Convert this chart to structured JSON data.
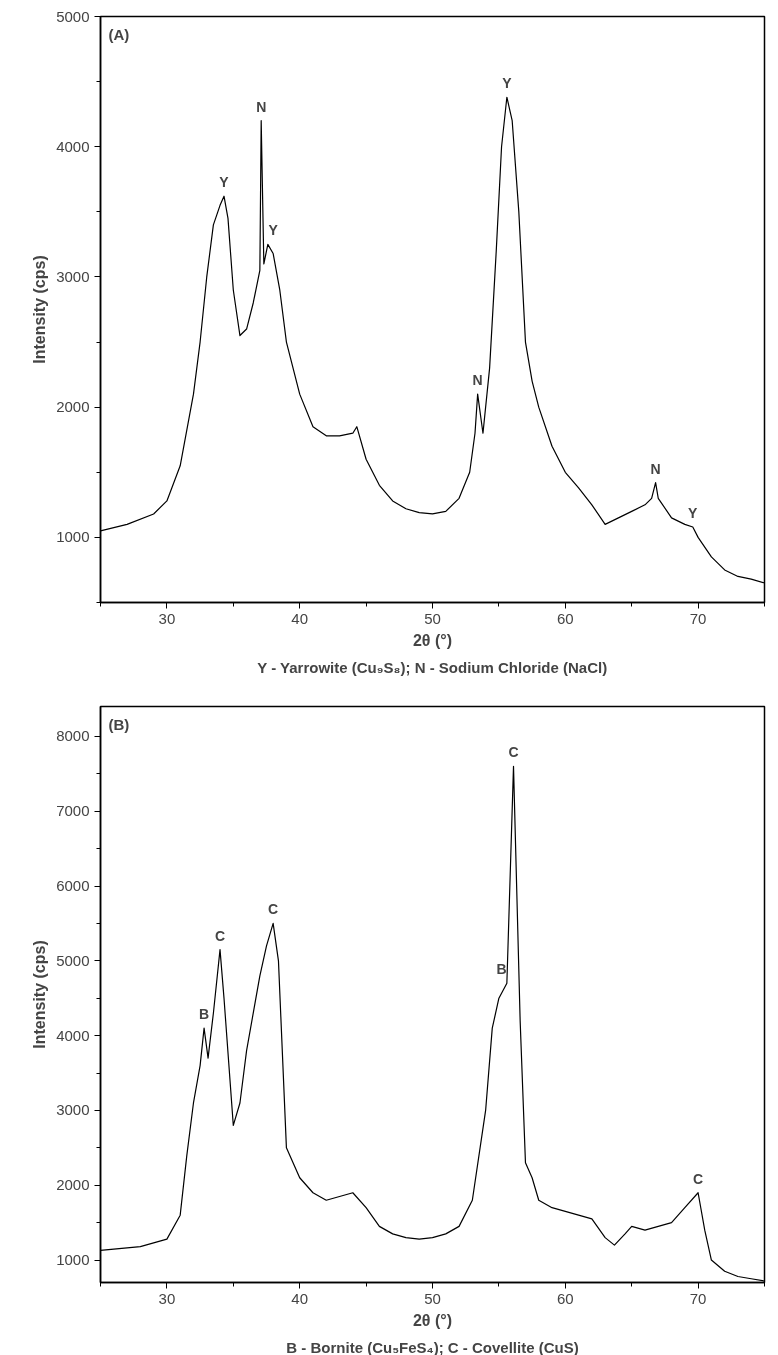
{
  "chart_data": [
    {
      "type": "line",
      "title": "(A)",
      "xlabel": "2θ (°)",
      "ylabel": "Intensity (cps)",
      "xlim": [
        25,
        75
      ],
      "ylim": [
        500,
        5000
      ],
      "xticks": [
        30,
        40,
        50,
        60,
        70
      ],
      "yticks": [
        1000,
        2000,
        3000,
        4000,
        5000
      ],
      "grid": false,
      "x": [
        25,
        27,
        29,
        30,
        31,
        32,
        32.5,
        33,
        33.5,
        34,
        34.3,
        34.6,
        35,
        35.5,
        36,
        36.5,
        37,
        37.1,
        37.3,
        37.6,
        38,
        38.5,
        39,
        40,
        41,
        42,
        43,
        44,
        44.3,
        45,
        46,
        47,
        48,
        49,
        50,
        51,
        52,
        52.8,
        53.2,
        53.4,
        53.8,
        54.3,
        54.8,
        55.2,
        55.6,
        56,
        56.5,
        57,
        57.5,
        58,
        59,
        60,
        61,
        62,
        63,
        64,
        65,
        66,
        66.5,
        66.8,
        67,
        68,
        69,
        69.6,
        70,
        71,
        72,
        73,
        74,
        75
      ],
      "series": [
        {
          "color": "#000000",
          "values": [
            1050,
            1100,
            1180,
            1280,
            1550,
            2100,
            2500,
            3000,
            3400,
            3550,
            3620,
            3450,
            2900,
            2550,
            2600,
            2800,
            3050,
            4200,
            3100,
            3250,
            3180,
            2900,
            2500,
            2100,
            1850,
            1780,
            1780,
            1800,
            1850,
            1600,
            1400,
            1280,
            1220,
            1190,
            1180,
            1200,
            1300,
            1500,
            1800,
            2100,
            1800,
            2300,
            3200,
            4000,
            4380,
            4200,
            3500,
            2500,
            2200,
            2000,
            1700,
            1500,
            1380,
            1250,
            1100,
            1150,
            1200,
            1250,
            1300,
            1420,
            1300,
            1150,
            1100,
            1080,
            1000,
            850,
            750,
            700,
            680,
            650
          ]
        }
      ],
      "annotations": [
        {
          "text": "Y",
          "x": 34.3,
          "y": 3620
        },
        {
          "text": "N",
          "x": 37.1,
          "y": 4200
        },
        {
          "text": "Y",
          "x": 38,
          "y": 3250
        },
        {
          "text": "N",
          "x": 53.4,
          "y": 2100
        },
        {
          "text": "Y",
          "x": 55.6,
          "y": 4380
        },
        {
          "text": "N",
          "x": 66.8,
          "y": 1420
        },
        {
          "text": "Y",
          "x": 69.6,
          "y": 1080
        },
        "Y - Yarrowite (Cu₉S₈); N - Sodium Chloride (NaCl)"
      ]
    },
    {
      "type": "line",
      "title": "(B)",
      "xlabel": "2θ (°)",
      "ylabel": "Intensity (cps)",
      "xlim": [
        25,
        75
      ],
      "ylim": [
        700,
        8400
      ],
      "xticks": [
        30,
        40,
        50,
        60,
        70
      ],
      "yticks": [
        1000,
        2000,
        3000,
        4000,
        5000,
        6000,
        7000,
        8000
      ],
      "grid": false,
      "x": [
        25,
        28,
        30,
        31,
        31.5,
        32,
        32.5,
        32.8,
        33.1,
        33.5,
        34,
        34.3,
        35,
        35.5,
        36,
        37,
        37.5,
        38,
        38.4,
        39,
        40,
        41,
        42,
        43,
        44,
        45,
        46,
        47,
        48,
        49,
        50,
        51,
        52,
        53,
        54,
        54.5,
        55,
        55.3,
        55.6,
        56.1,
        56.6,
        57,
        57.5,
        58,
        59,
        60,
        61,
        62,
        63,
        63.7,
        64.5,
        65,
        66,
        67,
        68,
        69,
        70,
        70.5,
        71,
        72,
        73,
        74,
        75
      ],
      "series": [
        {
          "color": "#000000",
          "values": [
            1130,
            1180,
            1280,
            1600,
            2400,
            3100,
            3600,
            4100,
            3700,
            4300,
            5150,
            4500,
            2800,
            3100,
            3800,
            4800,
            5200,
            5500,
            5000,
            2500,
            2100,
            1900,
            1800,
            1850,
            1900,
            1700,
            1450,
            1350,
            1300,
            1280,
            1300,
            1350,
            1450,
            1800,
            3000,
            4100,
            4500,
            4600,
            4700,
            7600,
            4200,
            2300,
            2100,
            1800,
            1700,
            1650,
            1600,
            1550,
            1300,
            1200,
            1350,
            1450,
            1400,
            1450,
            1500,
            1700,
            1900,
            1400,
            1000,
            850,
            780,
            750,
            720
          ]
        }
      ],
      "annotations": [
        {
          "text": "B",
          "x": 32.8,
          "y": 4100
        },
        {
          "text": "C",
          "x": 34,
          "y": 5150
        },
        {
          "text": "C",
          "x": 38,
          "y": 5500
        },
        {
          "text": "B",
          "x": 55.2,
          "y": 4700
        },
        {
          "text": "C",
          "x": 56.1,
          "y": 7600
        },
        {
          "text": "C",
          "x": 70,
          "y": 1900
        },
        "B - Bornite (Cu₅FeS₄); C - Covellite (CuS)"
      ]
    }
  ]
}
